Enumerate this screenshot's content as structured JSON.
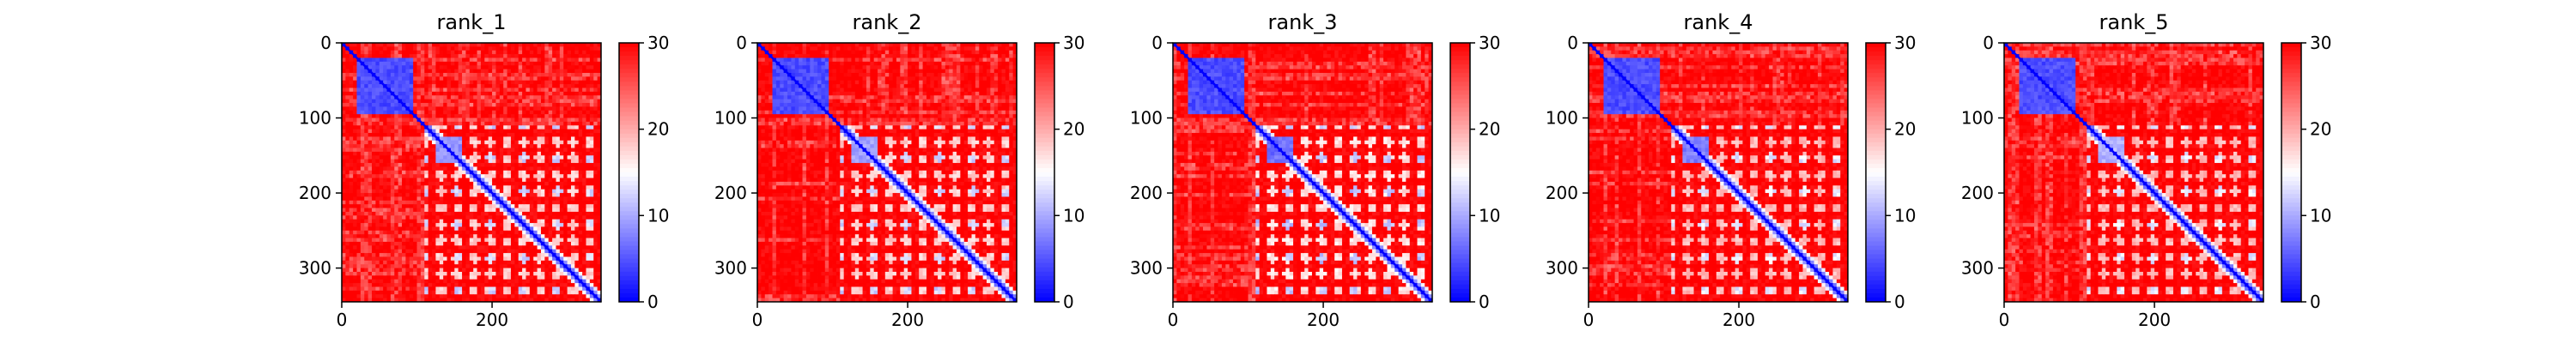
{
  "chart_data": {
    "type": "heatmap",
    "description_type": "predicted aligned error matrices",
    "residue_count": 345,
    "xlim": [
      0,
      345
    ],
    "ylim": [
      345,
      0
    ],
    "x_ticks": [
      0,
      200
    ],
    "y_ticks": [
      0,
      100,
      200,
      300
    ],
    "colorbar": {
      "min": 0,
      "max": 30,
      "ticks": [
        0,
        10,
        20,
        30
      ],
      "colormap": [
        "#0000ff",
        "#ffffff",
        "#ff0000"
      ]
    },
    "panels": [
      {
        "title": "rank_1",
        "blocks": [
          {
            "start": 20,
            "end": 95,
            "value": 3
          },
          {
            "start": 125,
            "end": 160,
            "value": 7
          }
        ],
        "pattern_strength": 0.55
      },
      {
        "title": "rank_2",
        "blocks": [
          {
            "start": 20,
            "end": 95,
            "value": 3
          },
          {
            "start": 125,
            "end": 160,
            "value": 8
          }
        ],
        "pattern_strength": 0.55
      },
      {
        "title": "rank_3",
        "blocks": [
          {
            "start": 20,
            "end": 95,
            "value": 3
          },
          {
            "start": 125,
            "end": 160,
            "value": 5
          }
        ],
        "pattern_strength": 0.6
      },
      {
        "title": "rank_4",
        "blocks": [
          {
            "start": 20,
            "end": 95,
            "value": 3
          },
          {
            "start": 125,
            "end": 160,
            "value": 6
          }
        ],
        "pattern_strength": 0.5
      },
      {
        "title": "rank_5",
        "blocks": [
          {
            "start": 20,
            "end": 95,
            "value": 3
          },
          {
            "start": 125,
            "end": 160,
            "value": 9
          }
        ],
        "pattern_strength": 0.5
      }
    ]
  }
}
